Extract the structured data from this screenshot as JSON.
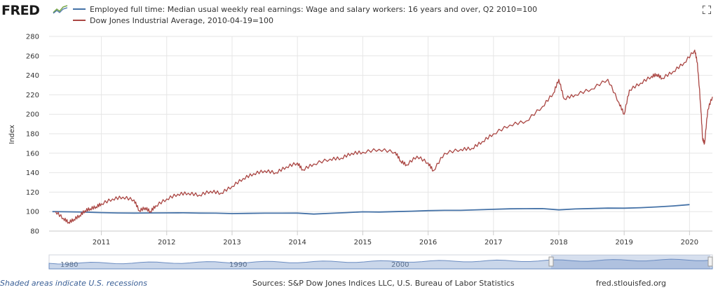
{
  "header": {
    "logo_text": "FRED",
    "expand_icon": "expand-icon"
  },
  "colors": {
    "series_1": "#4572a7",
    "series_2": "#aa4643",
    "grid": "#e6e6e6",
    "navigator_fill": "#c9d6ea",
    "navigator_line": "#6b8cc1"
  },
  "chart_data": {
    "type": "line",
    "title": "",
    "xlabel": "",
    "ylabel": "Index",
    "grid": true,
    "legend_position": "top-left",
    "xlim": [
      2010.2,
      2020.35
    ],
    "ylim": [
      80,
      280
    ],
    "y_ticks": [
      80,
      100,
      120,
      140,
      160,
      180,
      200,
      220,
      240,
      260,
      280
    ],
    "x_ticks": [
      "2011",
      "2012",
      "2013",
      "2014",
      "2015",
      "2016",
      "2017",
      "2018",
      "2019",
      "2020"
    ],
    "x_tick_values": [
      2011,
      2012,
      2013,
      2014,
      2015,
      2016,
      2017,
      2018,
      2019,
      2020
    ],
    "series": [
      {
        "name": "Employed full time: Median usual weekly real earnings: Wage and salary workers: 16 years and over, Q2 2010=100",
        "x": [
          2010.25,
          2010.5,
          2010.75,
          2011.0,
          2011.25,
          2011.5,
          2011.75,
          2012.0,
          2012.25,
          2012.5,
          2012.75,
          2013.0,
          2013.25,
          2013.5,
          2013.75,
          2014.0,
          2014.25,
          2014.5,
          2014.75,
          2015.0,
          2015.25,
          2015.5,
          2015.75,
          2016.0,
          2016.25,
          2016.5,
          2016.75,
          2017.0,
          2017.25,
          2017.5,
          2017.75,
          2018.0,
          2018.25,
          2018.5,
          2018.75,
          2019.0,
          2019.25,
          2019.5,
          2019.75,
          2020.0
        ],
        "y": [
          100.0,
          99.8,
          99.5,
          99.0,
          98.6,
          98.5,
          98.6,
          98.7,
          98.8,
          98.5,
          98.4,
          98.0,
          98.2,
          98.4,
          98.4,
          98.5,
          97.5,
          98.3,
          99.0,
          99.8,
          99.6,
          100.0,
          100.4,
          101.0,
          101.3,
          101.3,
          101.9,
          102.4,
          102.9,
          103.0,
          103.1,
          101.8,
          102.7,
          103.2,
          103.6,
          103.5,
          104.0,
          104.8,
          105.8,
          107.2
        ]
      },
      {
        "name": "Dow Jones Industrial Average, 2010-04-19=100",
        "x": [
          2010.3,
          2010.42,
          2010.5,
          2010.58,
          2010.67,
          2010.75,
          2010.83,
          2010.92,
          2011.0,
          2011.17,
          2011.33,
          2011.5,
          2011.58,
          2011.67,
          2011.75,
          2011.83,
          2012.0,
          2012.17,
          2012.33,
          2012.5,
          2012.67,
          2012.83,
          2013.0,
          2013.17,
          2013.33,
          2013.5,
          2013.67,
          2013.83,
          2014.0,
          2014.08,
          2014.25,
          2014.5,
          2014.67,
          2014.83,
          2015.0,
          2015.25,
          2015.5,
          2015.58,
          2015.67,
          2015.83,
          2016.0,
          2016.08,
          2016.25,
          2016.5,
          2016.67,
          2016.83,
          2017.0,
          2017.25,
          2017.5,
          2017.75,
          2017.92,
          2018.0,
          2018.08,
          2018.25,
          2018.5,
          2018.75,
          2018.92,
          2019.0,
          2019.08,
          2019.25,
          2019.42,
          2019.5,
          2019.58,
          2019.75,
          2019.92,
          2020.08,
          2020.12,
          2020.17,
          2020.2,
          2020.23,
          2020.28,
          2020.35
        ],
        "y": [
          100,
          93,
          89,
          92,
          96,
          101,
          103,
          105,
          108,
          113,
          115,
          112,
          101,
          104,
          100,
          106,
          113,
          118,
          119,
          117,
          121,
          119,
          126,
          134,
          139,
          142,
          140,
          146,
          150,
          143,
          149,
          154,
          155,
          160,
          161,
          164,
          161,
          152,
          148,
          157,
          150,
          142,
          160,
          164,
          165,
          172,
          180,
          189,
          193,
          208,
          222,
          236,
          216,
          220,
          226,
          236,
          212,
          200,
          225,
          232,
          239,
          241,
          237,
          244,
          253,
          266,
          253,
          210,
          175,
          170,
          205,
          218
        ]
      }
    ]
  },
  "navigator": {
    "labels": [
      "1980",
      "1990",
      "2000"
    ]
  },
  "footer": {
    "recession_note": "Shaded areas indicate U.S. recessions",
    "sources": "Sources: S&P Dow Jones Indices LLC, U.S. Bureau of Labor Statistics",
    "site": "fred.stlouisfed.org"
  }
}
